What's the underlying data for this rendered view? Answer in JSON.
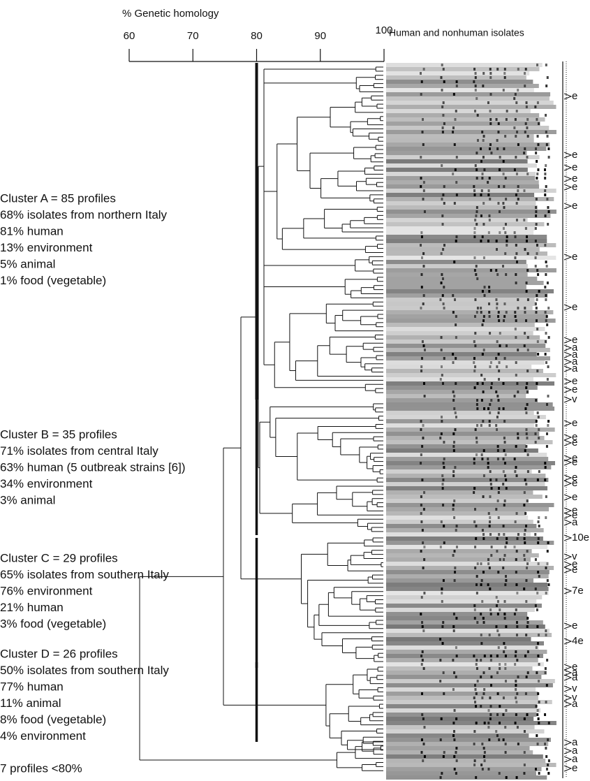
{
  "axis": {
    "title": "% Genetic homology",
    "ticks": [
      60,
      70,
      80,
      90,
      100
    ]
  },
  "header": "Human and nonhuman isolates",
  "clusters": [
    {
      "lines": [
        "Cluster A = 85 profiles",
        "68% isolates from northern Italy",
        "81% human",
        "13% environment",
        "5% animal",
        "1% food (vegetable)"
      ]
    },
    {
      "lines": [
        "Cluster B = 35 profiles",
        "71% isolates from central Italy",
        "63% human (5 outbreak strains [6])",
        "34% environment",
        "3% animal"
      ]
    },
    {
      "lines": [
        "Cluster C = 29 profiles",
        "65% isolates from southern Italy",
        "76% environment",
        "21% human",
        "3% food (vegetable)"
      ]
    },
    {
      "lines": [
        "Cluster D = 26 profiles",
        "50% isolates from southern Italy",
        "77% human",
        "11% animal",
        "8% food (vegetable)",
        "4% environment"
      ]
    }
  ],
  "other": "7 profiles <80%",
  "side_labels": [
    "e",
    "e",
    "e",
    "e",
    "e",
    "e",
    "e",
    "e",
    "e",
    "a",
    "a",
    "a",
    "a",
    "e",
    "e",
    "v",
    "e",
    "e",
    "e",
    "e",
    "e",
    "e",
    "e",
    "e",
    "e",
    "e",
    "a",
    "10e",
    "v",
    "e",
    "e",
    "7e",
    "e",
    "4e",
    "e",
    "a",
    "a",
    "v",
    "v",
    "a",
    "a",
    "a",
    "a",
    "e"
  ]
}
